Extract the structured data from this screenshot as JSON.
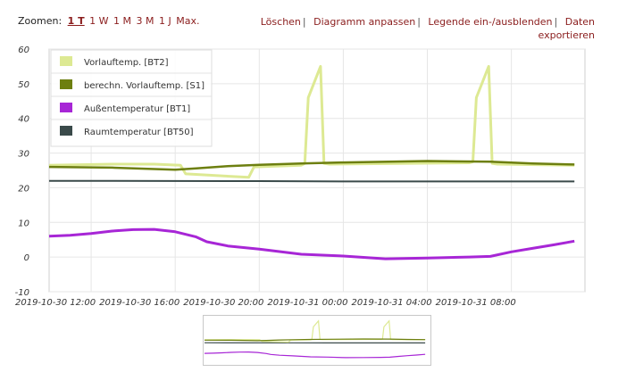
{
  "toolbar": {
    "zoom_label": "Zoomen:",
    "zoom_options": [
      "1 T",
      "1 W",
      "1 M",
      "3 M",
      "1 J",
      "Max."
    ],
    "zoom_active_index": 0,
    "actions": [
      "Löschen",
      "Diagramm anpassen",
      "Legende ein-/ausblenden",
      "Daten exportieren"
    ]
  },
  "colors": {
    "accent_text": "#8a1c1c",
    "vorlauf": "#dde993",
    "berechn": "#6d7f10",
    "aussen": "#a726d6",
    "raum": "#3a4a4a"
  },
  "chart_data": {
    "type": "line",
    "ylim": [
      -10,
      60
    ],
    "y_ticks": [
      60,
      50,
      40,
      30,
      20,
      10,
      0,
      -10
    ],
    "x_ticks": [
      "2019-10-30 12:00",
      "2019-10-30 16:00",
      "2019-10-30 20:00",
      "2019-10-31 00:00",
      "2019-10-31 04:00",
      "2019-10-31 08:00"
    ],
    "x_range": [
      "2019-10-30 10:00",
      "2019-10-31 11:30"
    ],
    "grid": true,
    "legend_position": "top-left",
    "series": [
      {
        "name": "Vorlauftemp. [BT2]",
        "color": "#dde993",
        "points": [
          [
            "2019-10-30 10:00",
            26.5
          ],
          [
            "2019-10-30 13:00",
            26.8
          ],
          [
            "2019-10-30 15:00",
            26.8
          ],
          [
            "2019-10-30 16:15",
            26.5
          ],
          [
            "2019-10-30 16:30",
            24.0
          ],
          [
            "2019-10-30 19:30",
            23.0
          ],
          [
            "2019-10-30 19:45",
            26.0
          ],
          [
            "2019-10-30 22:00",
            26.5
          ],
          [
            "2019-10-30 22:10",
            27.0
          ],
          [
            "2019-10-30 22:20",
            46.0
          ],
          [
            "2019-10-30 22:55",
            55.0
          ],
          [
            "2019-10-30 23:05",
            27.0
          ],
          [
            "2019-10-30 23:20",
            26.8
          ],
          [
            "2019-10-31 06:00",
            27.2
          ],
          [
            "2019-10-31 06:10",
            27.5
          ],
          [
            "2019-10-31 06:20",
            46.0
          ],
          [
            "2019-10-31 06:55",
            55.0
          ],
          [
            "2019-10-31 07:05",
            27.0
          ],
          [
            "2019-10-31 07:20",
            26.8
          ],
          [
            "2019-10-31 11:00",
            26.5
          ]
        ]
      },
      {
        "name": "berechn. Vorlauftemp. [S1]",
        "color": "#6d7f10",
        "points": [
          [
            "2019-10-30 10:00",
            26.0
          ],
          [
            "2019-10-30 13:00",
            25.8
          ],
          [
            "2019-10-30 16:00",
            25.2
          ],
          [
            "2019-10-30 17:00",
            25.6
          ],
          [
            "2019-10-30 18:30",
            26.2
          ],
          [
            "2019-10-30 20:00",
            26.6
          ],
          [
            "2019-10-30 22:00",
            27.0
          ],
          [
            "2019-10-31 00:00",
            27.3
          ],
          [
            "2019-10-31 04:00",
            27.7
          ],
          [
            "2019-10-31 07:00",
            27.5
          ],
          [
            "2019-10-31 09:00",
            27.0
          ],
          [
            "2019-10-31 11:00",
            26.7
          ]
        ]
      },
      {
        "name": "Außentemperatur [BT1]",
        "color": "#a726d6",
        "points": [
          [
            "2019-10-30 10:00",
            6.0
          ],
          [
            "2019-10-30 11:00",
            6.3
          ],
          [
            "2019-10-30 12:00",
            6.8
          ],
          [
            "2019-10-30 13:00",
            7.5
          ],
          [
            "2019-10-30 14:00",
            7.9
          ],
          [
            "2019-10-30 15:00",
            8.0
          ],
          [
            "2019-10-30 16:00",
            7.3
          ],
          [
            "2019-10-30 17:00",
            5.8
          ],
          [
            "2019-10-30 17:30",
            4.4
          ],
          [
            "2019-10-30 18:30",
            3.2
          ],
          [
            "2019-10-30 20:00",
            2.3
          ],
          [
            "2019-10-30 22:00",
            0.8
          ],
          [
            "2019-10-31 00:00",
            0.3
          ],
          [
            "2019-10-31 02:00",
            -0.5
          ],
          [
            "2019-10-31 04:00",
            -0.3
          ],
          [
            "2019-10-31 06:00",
            0.0
          ],
          [
            "2019-10-31 07:00",
            0.2
          ],
          [
            "2019-10-31 08:00",
            1.5
          ],
          [
            "2019-10-31 09:00",
            2.5
          ],
          [
            "2019-10-31 10:00",
            3.5
          ],
          [
            "2019-10-31 11:00",
            4.6
          ]
        ]
      },
      {
        "name": "Raumtemperatur [BT50]",
        "color": "#3a4a4a",
        "points": [
          [
            "2019-10-30 10:00",
            22.0
          ],
          [
            "2019-10-30 20:00",
            21.9
          ],
          [
            "2019-10-31 00:00",
            21.8
          ],
          [
            "2019-10-31 11:00",
            21.8
          ]
        ]
      }
    ]
  }
}
